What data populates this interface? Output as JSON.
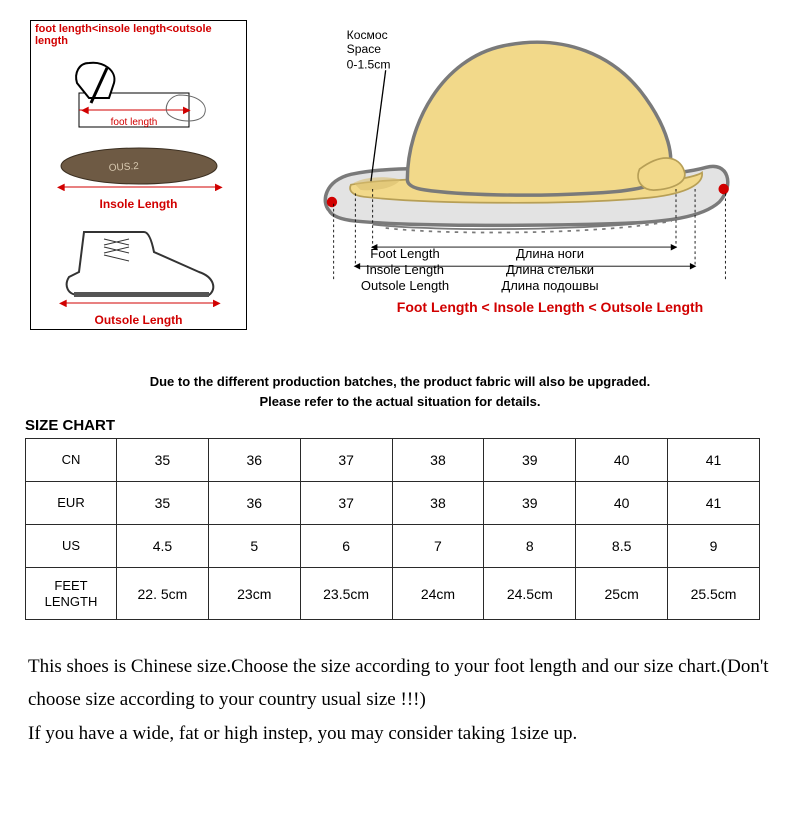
{
  "left": {
    "header": "foot length<insole length<outsole length",
    "foot_label": "foot length",
    "insole_label": "Insole Length",
    "outsole_label": "Outsole Length"
  },
  "space": {
    "ru": "Космос",
    "en": "Space",
    "range": "0-1.5cm"
  },
  "lengths": {
    "foot_en": "Foot Length",
    "foot_ru": "Длина ноги",
    "insole_en": "Insole Length",
    "insole_ru": "Длина стельки",
    "outsole_en": "Outsole Length",
    "outsole_ru": "Длина подошвы",
    "inequality": "Foot Length < Insole Length < Outsole Length"
  },
  "batch_note_1": "Due to the different production batches, the product fabric will also be upgraded.",
  "batch_note_2": "Please refer to the actual situation for details.",
  "size_chart_title": "SIZE CHART",
  "table": {
    "rows": [
      {
        "h": "CN",
        "c": [
          "35",
          "36",
          "37",
          "38",
          "39",
          "40",
          "41"
        ]
      },
      {
        "h": "EUR",
        "c": [
          "35",
          "36",
          "37",
          "38",
          "39",
          "40",
          "41"
        ]
      },
      {
        "h": "US",
        "c": [
          "4.5",
          "5",
          "6",
          "7",
          "8",
          "8.5",
          "9"
        ]
      },
      {
        "h": "FEET\nLENGTH",
        "c": [
          "22. 5cm",
          "23cm",
          "23.5cm",
          "24cm",
          "24.5cm",
          "25cm",
          "25.5cm"
        ]
      }
    ]
  },
  "footer_1": "This shoes is Chinese size.Choose the size according to your foot length and our size chart.(Don't choose size according to your country usual size !!!)",
  "footer_2": "If you have a wide, fat or high instep, you may consider taking 1size up.",
  "colors": {
    "red": "#d10000",
    "shoe_outline": "#7a7a7a",
    "shoe_yellow": "#f2d98a",
    "sole_gray": "#b9b9b9",
    "insole_brown": "#6e5a44"
  }
}
